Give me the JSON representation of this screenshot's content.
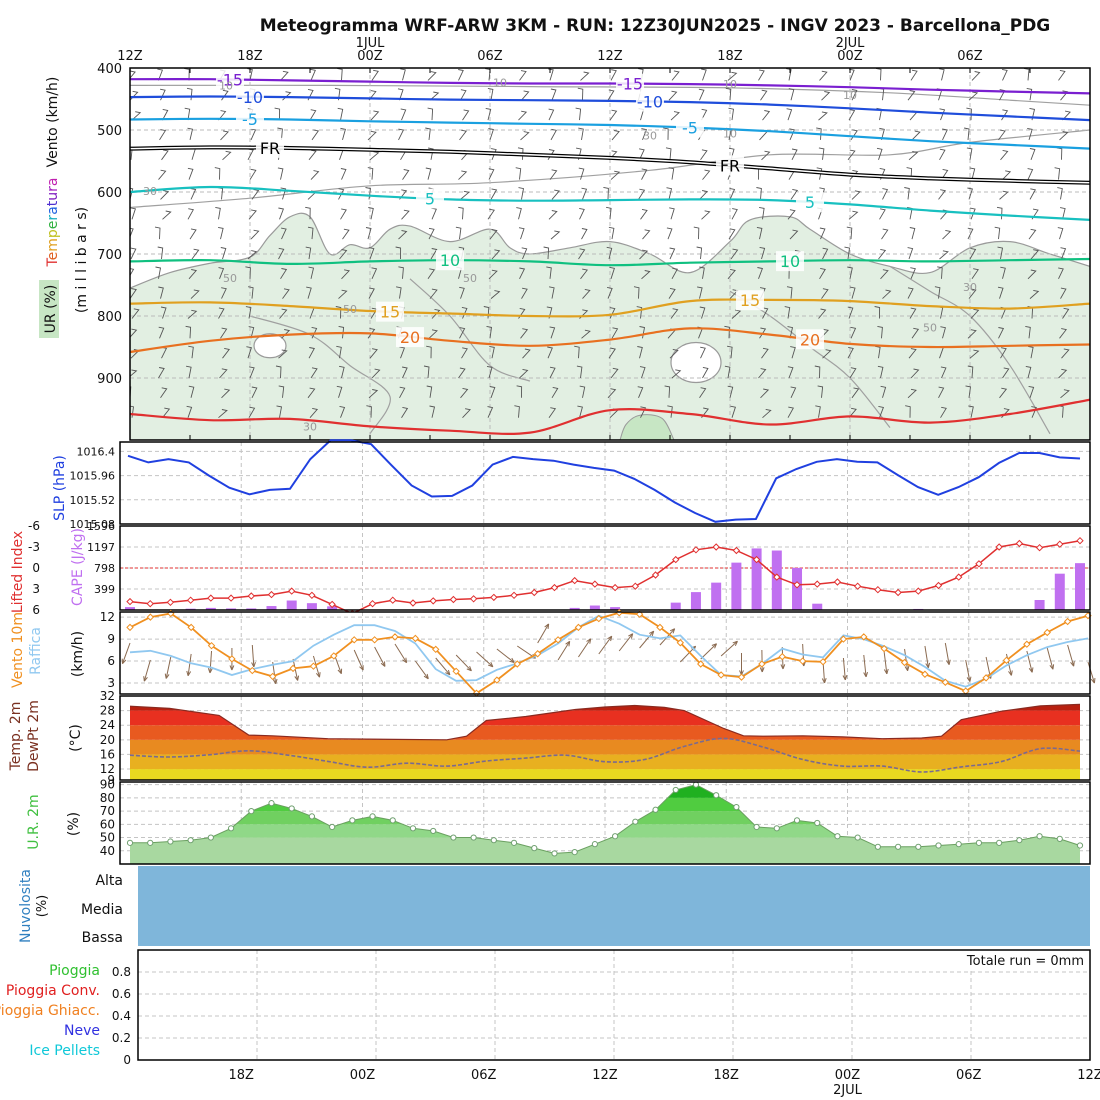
{
  "title": "Meteogramma WRF-ARW 3KM - RUN: 12Z30JUN2025 - INGV 2023 - Barcellona_PDG",
  "colors": {
    "purple": "#7a1fd0",
    "blue": "#1f4ddb",
    "cyan": "#1aa0e0",
    "teal": "#18c0c0",
    "green": "#10c080",
    "orange": "#e0a020",
    "darkorange": "#e87020",
    "red": "#e03030",
    "rhfill": "#e2efe2",
    "rhfill2": "#c7e6c4",
    "slp": "#2040e0",
    "cape": "#c070f0",
    "li": "#e03030",
    "wind10": "#f09020",
    "gust": "#90c8f0",
    "temp": "#e03020",
    "dew": "#7a6a90",
    "rh2m": "#40c040",
    "cloud": "#7fb6da"
  },
  "top_time_labels": [
    {
      "t": 0,
      "label": "12Z"
    },
    {
      "t": 6,
      "label": "18Z"
    },
    {
      "t": 12,
      "label": "00Z",
      "date": "1JUL"
    },
    {
      "t": 18,
      "label": "06Z"
    },
    {
      "t": 24,
      "label": "12Z"
    },
    {
      "t": 30,
      "label": "18Z"
    },
    {
      "t": 36,
      "label": "00Z",
      "date": "2JUL"
    },
    {
      "t": 42,
      "label": "06Z"
    }
  ],
  "bottom_time_labels": [
    {
      "t": 6,
      "label": "18Z"
    },
    {
      "t": 12,
      "label": "00Z"
    },
    {
      "t": 18,
      "label": "06Z"
    },
    {
      "t": 24,
      "label": "12Z"
    },
    {
      "t": 30,
      "label": "18Z"
    },
    {
      "t": 36,
      "label": "00Z",
      "date": "2JUL"
    },
    {
      "t": 42,
      "label": "06Z"
    },
    {
      "t": 48,
      "label": "12Z"
    }
  ],
  "chart_data": [
    {
      "type": "line",
      "name": "vertical-section",
      "ylabels": [
        "Vento (km/h)",
        "Temperatura",
        "(m i l l i b a r s)",
        "UR (%)"
      ],
      "yticks": [
        400,
        500,
        600,
        700,
        800,
        900
      ],
      "ylim": [
        1000,
        400
      ],
      "x": [
        0,
        4,
        8,
        12,
        16,
        20,
        24,
        28,
        32,
        36,
        40,
        44,
        48
      ],
      "isotherms": [
        {
          "label": "-15",
          "color": "purple",
          "p": [
            418,
            418,
            420,
            422,
            424,
            425,
            425,
            426,
            428,
            431,
            435,
            438,
            441
          ],
          "labels_at": [
            5,
            25
          ]
        },
        {
          "label": "-10",
          "color": "blue",
          "p": [
            447,
            446,
            447,
            449,
            451,
            452,
            453,
            455,
            459,
            465,
            472,
            478,
            484
          ],
          "labels_at": [
            6,
            26
          ]
        },
        {
          "label": "-5",
          "color": "cyan",
          "p": [
            483,
            482,
            483,
            486,
            488,
            490,
            492,
            496,
            502,
            510,
            518,
            524,
            530
          ],
          "labels_at": [
            6,
            28
          ]
        },
        {
          "label": "FR",
          "color": "black",
          "p": [
            530,
            528,
            529,
            532,
            535,
            540,
            545,
            552,
            562,
            572,
            578,
            582,
            585
          ],
          "labels_at": [
            7,
            30
          ]
        },
        {
          "label": "5",
          "color": "teal",
          "p": [
            600,
            592,
            598,
            606,
            612,
            614,
            613,
            612,
            613,
            620,
            630,
            638,
            645
          ],
          "labels_at": [
            15,
            34
          ]
        },
        {
          "label": "10",
          "color": "green",
          "p": [
            712,
            710,
            716,
            712,
            710,
            712,
            718,
            714,
            712,
            710,
            712,
            710,
            708
          ],
          "labels_at": [
            16,
            33
          ]
        },
        {
          "label": "15",
          "color": "orange",
          "p": [
            780,
            778,
            784,
            792,
            796,
            800,
            798,
            776,
            774,
            776,
            784,
            788,
            780
          ],
          "labels_at": [
            13,
            31
          ]
        },
        {
          "label": "20",
          "color": "darkorange",
          "p": [
            858,
            840,
            830,
            828,
            840,
            848,
            838,
            820,
            830,
            845,
            850,
            848,
            846
          ],
          "labels_at": [
            14,
            34
          ]
        }
      ],
      "rh_contour_labels": [
        "10",
        "10",
        "10",
        "10",
        "10",
        "30",
        "30",
        "30",
        "50",
        "50",
        "50",
        "50",
        "30"
      ],
      "bottom_isotherm": {
        "color": "red",
        "p": [
          958,
          968,
          966,
          978,
          985,
          988,
          952,
          958,
          975,
          962,
          972,
          958,
          935
        ]
      }
    },
    {
      "type": "line",
      "name": "slp",
      "ylabel": "SLP (hPa)",
      "yticks": [
        "1016.4",
        "1015.96",
        "1015.52",
        "1015.08"
      ],
      "ylim": [
        1015.08,
        1016.57
      ],
      "x": [
        0,
        1,
        2,
        3,
        4,
        5,
        6,
        7,
        8,
        9,
        10,
        11,
        12,
        13,
        14,
        15,
        16,
        17,
        18,
        19,
        20,
        21,
        22,
        23,
        24,
        25,
        26,
        27,
        28,
        29,
        30,
        31,
        32,
        33,
        34,
        35,
        36,
        37,
        38,
        39,
        40,
        41,
        42,
        43,
        44,
        45,
        46,
        47
      ],
      "values": [
        1016.32,
        1016.2,
        1016.26,
        1016.2,
        1015.96,
        1015.74,
        1015.62,
        1015.7,
        1015.72,
        1016.26,
        1016.6,
        1016.6,
        1016.53,
        1016.15,
        1015.78,
        1015.58,
        1015.59,
        1015.78,
        1016.16,
        1016.3,
        1016.26,
        1016.23,
        1016.16,
        1016.1,
        1016.05,
        1015.9,
        1015.7,
        1015.47,
        1015.28,
        1015.12,
        1015.16,
        1015.17,
        1015.91,
        1016.08,
        1016.21,
        1016.26,
        1016.21,
        1016.2,
        1015.97,
        1015.75,
        1015.61,
        1015.75,
        1015.93,
        1016.19,
        1016.37,
        1016.37,
        1016.29,
        1016.27
      ]
    },
    {
      "type": "bar",
      "name": "cape-lifted-index",
      "ylabel_left": "Lifted Index",
      "ylabel_right": "CAPE (J/kg)",
      "li_ticks": [
        "-6",
        "-3",
        "0",
        "3",
        "6"
      ],
      "cape_ticks": [
        "1596",
        "1197",
        "798",
        "399"
      ],
      "x": [
        0,
        1,
        2,
        3,
        4,
        5,
        6,
        7,
        8,
        9,
        10,
        11,
        12,
        13,
        14,
        15,
        16,
        17,
        18,
        19,
        20,
        21,
        22,
        23,
        24,
        25,
        26,
        27,
        28,
        29,
        30,
        31,
        32,
        33,
        34,
        35,
        36,
        37,
        38,
        39,
        40,
        41,
        42,
        43,
        44,
        45,
        46,
        47
      ],
      "cape": [
        55,
        0,
        0,
        25,
        40,
        30,
        30,
        75,
        180,
        130,
        70,
        0,
        0,
        0,
        0,
        0,
        0,
        0,
        0,
        0,
        0,
        0,
        40,
        85,
        55,
        0,
        0,
        140,
        340,
        520,
        900,
        1170,
        1130,
        800,
        120,
        0,
        0,
        0,
        0,
        20,
        0,
        0,
        0,
        0,
        0,
        190,
        690,
        890
      ],
      "lifted_index": [
        4.8,
        5.1,
        4.9,
        4.6,
        4.3,
        4.3,
        4.0,
        3.8,
        3.3,
        3.9,
        5.2,
        6.5,
        5.1,
        4.6,
        5.0,
        4.7,
        4.5,
        4.4,
        4.2,
        3.9,
        3.5,
        2.8,
        1.8,
        2.3,
        2.8,
        2.6,
        1.0,
        -1.2,
        -2.6,
        -3.0,
        -2.5,
        -1.2,
        1.3,
        2.4,
        2.3,
        2.0,
        2.6,
        3.1,
        3.5,
        3.3,
        2.5,
        1.3,
        -0.6,
        -3.0,
        -3.5,
        -2.9,
        -3.4,
        -3.9
      ]
    },
    {
      "type": "line",
      "name": "wind-10m",
      "ylabels": [
        "Vento 10m",
        "Raffica",
        "(km/h)"
      ],
      "yticks": [
        12,
        9,
        6,
        3
      ],
      "ylim": [
        1.5,
        12.7
      ],
      "x": [
        0,
        1,
        2,
        3,
        4,
        5,
        6,
        7,
        8,
        9,
        10,
        11,
        12,
        13,
        14,
        15,
        16,
        17,
        18,
        19,
        20,
        21,
        22,
        23,
        24,
        25,
        26,
        27,
        28,
        29,
        30,
        31,
        32,
        33,
        34,
        35,
        36,
        37,
        38,
        39,
        40,
        41,
        42,
        43,
        44,
        45,
        46,
        47
      ],
      "wind": [
        10.6,
        12.0,
        12.5,
        10.6,
        8.1,
        6.3,
        4.7,
        3.9,
        5.0,
        5.3,
        6.7,
        8.9,
        8.9,
        9.3,
        9.1,
        7.6,
        4.6,
        1.6,
        3.4,
        5.6,
        7.0,
        8.9,
        10.6,
        11.8,
        12.6,
        12.4,
        10.6,
        8.5,
        5.6,
        4.1,
        3.8,
        5.6,
        6.6,
        6.0,
        5.9,
        9.0,
        9.3,
        7.7,
        5.8,
        4.2,
        3.1,
        1.9,
        3.7,
        6.1,
        8.3,
        9.9,
        11.4,
        12.2
      ],
      "gust": [
        7.2,
        7.4,
        6.7,
        5.7,
        5.1,
        4.1,
        4.9,
        5.5,
        6.0,
        8.1,
        9.6,
        10.9,
        10.9,
        10.1,
        8.4,
        4.9,
        3.3,
        3.4,
        4.8,
        5.7,
        6.8,
        8.4,
        10.6,
        12.2,
        11.1,
        9.6,
        9.1,
        9.5,
        6.7,
        4.1,
        3.9,
        5.6,
        7.7,
        6.9,
        6.5,
        9.5,
        9.0,
        8.0,
        6.8,
        5.2,
        3.3,
        2.5,
        3.6,
        5.4,
        6.8,
        7.9,
        8.6,
        9.1
      ]
    },
    {
      "type": "area",
      "name": "temp-dewpoint-2m",
      "ylabels": [
        "Temp. 2m",
        "DewPt 2m",
        "(°C)"
      ],
      "yticks": [
        32,
        28,
        24,
        20,
        16,
        12,
        9
      ],
      "ylim": [
        9,
        32
      ],
      "temp_x": [
        0,
        2,
        4.5,
        6,
        7.2,
        10,
        12,
        16,
        17,
        18,
        20,
        22.5,
        24,
        25.5,
        27,
        28,
        30,
        31,
        32,
        34,
        36,
        38,
        40,
        41,
        42,
        44,
        46,
        48
      ],
      "temp": [
        29.2,
        28.6,
        26.7,
        21.3,
        21.1,
        20.3,
        20.2,
        20.0,
        21.0,
        25.3,
        26.4,
        28.3,
        29.0,
        29.4,
        28.9,
        28.0,
        23.1,
        21.1,
        21.0,
        21.1,
        20.8,
        20.3,
        20.5,
        21.0,
        25.5,
        27.8,
        29.3,
        29.7
      ],
      "dew_x": [
        0,
        2,
        4,
        6,
        8,
        10,
        12,
        14,
        16,
        18,
        20,
        22,
        24,
        26,
        28,
        30,
        32,
        34,
        36,
        38,
        40,
        42,
        44,
        46,
        48
      ],
      "dew": [
        15.8,
        15.3,
        15.9,
        17.0,
        15.8,
        14.1,
        12.5,
        13.6,
        12.8,
        14.2,
        15.0,
        15.8,
        14.0,
        14.6,
        18.2,
        20.4,
        18.0,
        14.6,
        12.8,
        12.8,
        11.2,
        12.6,
        14.0,
        17.6,
        16.9
      ]
    },
    {
      "type": "area",
      "name": "rh-2m",
      "ylabels": [
        "U.R. 2m",
        "(%)"
      ],
      "yticks": [
        90,
        80,
        70,
        60,
        50,
        40
      ],
      "ylim": [
        30,
        92
      ],
      "x": [
        0,
        1,
        2,
        3,
        4,
        5,
        6,
        7,
        8,
        9,
        10,
        11,
        12,
        13,
        14,
        15,
        16,
        17,
        18,
        19,
        20,
        21,
        22,
        23,
        24,
        25,
        26,
        27,
        28,
        29,
        30,
        31,
        32,
        33,
        34,
        35,
        36,
        37,
        38,
        39,
        40,
        41,
        42,
        43,
        44,
        45,
        46,
        47
      ],
      "values": [
        46,
        46,
        47,
        48,
        50,
        57,
        70,
        76,
        72,
        66,
        58,
        63,
        66,
        63,
        57,
        55,
        50,
        50,
        48,
        46,
        42,
        38,
        39,
        45,
        51,
        62,
        71,
        86,
        90,
        82,
        73,
        58,
        57,
        63,
        61,
        51,
        50,
        43,
        43,
        43,
        44,
        45,
        46,
        46,
        48,
        51,
        49,
        44
      ]
    },
    {
      "type": "heatmap",
      "name": "cloud-cover",
      "ylabel": "Nuvolosita (%)",
      "levels": [
        "Alta",
        "Media",
        "Bassa"
      ]
    },
    {
      "type": "bar",
      "name": "precipitation",
      "legend": [
        "Pioggia",
        "Pioggia Conv.",
        "Pioggia Ghiacc.",
        "Neve",
        "Ice Pellets"
      ],
      "legend_colors": [
        "#30c030",
        "#e02020",
        "#f08020",
        "#3030e0",
        "#10c8d8"
      ],
      "yticks": [
        "0.8",
        "0.6",
        "0.4",
        "0.2",
        "0"
      ],
      "ylim": [
        0,
        1
      ],
      "total_label": "Totale run = 0mm"
    }
  ]
}
